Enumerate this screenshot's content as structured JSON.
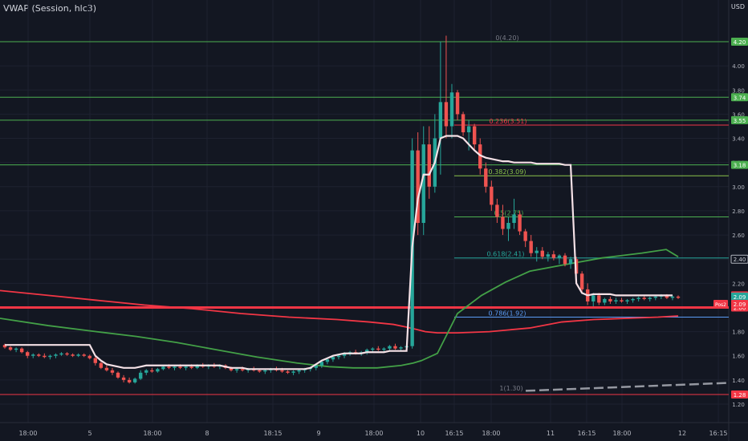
{
  "indicator_label": "VWAP (Session, hlc3)",
  "currency": "USD",
  "chart_data": {
    "type": "candlestick",
    "ylim": [
      1.08,
      4.45
    ],
    "y_ticks": [
      "1.20",
      "1.40",
      "1.60",
      "1.80",
      "2.00",
      "2.20",
      "2.40",
      "2.60",
      "2.80",
      "3.00",
      "3.20",
      "3.40",
      "3.60",
      "3.80",
      "4.00",
      "4.20"
    ],
    "x_ticks": [
      "18:00",
      "5",
      "18:00",
      "8",
      "18:15",
      "9",
      "18:00",
      "10",
      "16:15",
      "18:00",
      "11",
      "16:15",
      "18:00",
      "12",
      "16:15"
    ],
    "horizontal_levels": [
      {
        "price": 4.2,
        "label": "4.20",
        "color": "#4caf50"
      },
      {
        "price": 3.74,
        "label": "3.74",
        "color": "#4caf50"
      },
      {
        "price": 3.55,
        "label": "3.55",
        "color": "#4caf50"
      },
      {
        "price": 3.18,
        "label": "3.18",
        "color": "#4caf50"
      },
      {
        "price": 1.28,
        "label": "1.28",
        "color": "#f23645"
      },
      {
        "price": 2.0,
        "label": "2.00",
        "color": "#f23645"
      }
    ],
    "price_badges": [
      {
        "price": 2.1,
        "label": "2.10",
        "color": "#f23645"
      },
      {
        "price": 2.09,
        "label": "2.09",
        "color": "#26a69a"
      },
      {
        "price": 2.4,
        "label": "2.40",
        "color": "#131722"
      }
    ],
    "position_tag": {
      "price": 2.03,
      "label": "Pos2",
      "value": "2.09"
    },
    "fib_levels": [
      {
        "ratio": "0",
        "price": 4.2,
        "label": "0(4.20)",
        "color": "#787b86"
      },
      {
        "ratio": "0.236",
        "price": 3.51,
        "label": "0.236(3.51)",
        "color": "#f23645"
      },
      {
        "ratio": "0.382",
        "price": 3.09,
        "label": "0.382(3.09)",
        "color": "#8bc34a"
      },
      {
        "ratio": "0.5",
        "price": 2.75,
        "label": "0.5(2.75)",
        "color": "#4caf50"
      },
      {
        "ratio": "0.618",
        "price": 2.41,
        "label": "0.618(2.41)",
        "color": "#26a69a"
      },
      {
        "ratio": "0.786",
        "price": 1.92,
        "label": "0.786(1.92)",
        "color": "#5b9cf6"
      },
      {
        "ratio": "1",
        "price": 1.3,
        "label": "1(1.30)",
        "color": "#787b86"
      }
    ],
    "candles": [
      [
        1.69,
        1.7,
        1.66,
        1.67
      ],
      [
        1.67,
        1.68,
        1.64,
        1.65
      ],
      [
        1.65,
        1.67,
        1.63,
        1.66
      ],
      [
        1.66,
        1.67,
        1.62,
        1.63
      ],
      [
        1.63,
        1.64,
        1.58,
        1.6
      ],
      [
        1.6,
        1.62,
        1.58,
        1.61
      ],
      [
        1.61,
        1.62,
        1.59,
        1.6
      ],
      [
        1.6,
        1.62,
        1.58,
        1.59
      ],
      [
        1.59,
        1.61,
        1.57,
        1.6
      ],
      [
        1.6,
        1.62,
        1.58,
        1.61
      ],
      [
        1.61,
        1.63,
        1.6,
        1.62
      ],
      [
        1.62,
        1.63,
        1.6,
        1.61
      ],
      [
        1.61,
        1.62,
        1.59,
        1.6
      ],
      [
        1.6,
        1.62,
        1.59,
        1.61
      ],
      [
        1.61,
        1.62,
        1.59,
        1.6
      ],
      [
        1.6,
        1.61,
        1.57,
        1.58
      ],
      [
        1.58,
        1.6,
        1.52,
        1.54
      ],
      [
        1.54,
        1.55,
        1.49,
        1.5
      ],
      [
        1.5,
        1.52,
        1.47,
        1.48
      ],
      [
        1.48,
        1.5,
        1.44,
        1.46
      ],
      [
        1.46,
        1.47,
        1.41,
        1.42
      ],
      [
        1.42,
        1.44,
        1.38,
        1.4
      ],
      [
        1.4,
        1.42,
        1.37,
        1.38
      ],
      [
        1.38,
        1.42,
        1.37,
        1.41
      ],
      [
        1.41,
        1.48,
        1.4,
        1.46
      ],
      [
        1.46,
        1.49,
        1.44,
        1.48
      ],
      [
        1.48,
        1.5,
        1.46,
        1.47
      ],
      [
        1.47,
        1.5,
        1.46,
        1.49
      ],
      [
        1.49,
        1.52,
        1.48,
        1.51
      ],
      [
        1.51,
        1.53,
        1.49,
        1.5
      ],
      [
        1.5,
        1.52,
        1.48,
        1.51
      ],
      [
        1.51,
        1.53,
        1.49,
        1.5
      ],
      [
        1.5,
        1.52,
        1.48,
        1.51
      ],
      [
        1.51,
        1.53,
        1.49,
        1.5
      ],
      [
        1.5,
        1.53,
        1.49,
        1.52
      ],
      [
        1.52,
        1.54,
        1.5,
        1.51
      ],
      [
        1.51,
        1.53,
        1.49,
        1.52
      ],
      [
        1.52,
        1.54,
        1.5,
        1.51
      ],
      [
        1.51,
        1.53,
        1.49,
        1.52
      ],
      [
        1.52,
        1.53,
        1.49,
        1.5
      ],
      [
        1.5,
        1.51,
        1.47,
        1.48
      ],
      [
        1.48,
        1.5,
        1.46,
        1.49
      ],
      [
        1.49,
        1.51,
        1.47,
        1.48
      ],
      [
        1.48,
        1.5,
        1.46,
        1.49
      ],
      [
        1.49,
        1.51,
        1.47,
        1.48
      ],
      [
        1.48,
        1.49,
        1.46,
        1.47
      ],
      [
        1.47,
        1.49,
        1.45,
        1.48
      ],
      [
        1.48,
        1.5,
        1.46,
        1.49
      ],
      [
        1.49,
        1.51,
        1.47,
        1.48
      ],
      [
        1.48,
        1.5,
        1.46,
        1.47
      ],
      [
        1.47,
        1.48,
        1.45,
        1.46
      ],
      [
        1.46,
        1.48,
        1.44,
        1.47
      ],
      [
        1.47,
        1.49,
        1.45,
        1.48
      ],
      [
        1.48,
        1.5,
        1.46,
        1.49
      ],
      [
        1.49,
        1.51,
        1.47,
        1.5
      ],
      [
        1.5,
        1.53,
        1.48,
        1.52
      ],
      [
        1.52,
        1.56,
        1.5,
        1.55
      ],
      [
        1.55,
        1.58,
        1.53,
        1.57
      ],
      [
        1.57,
        1.6,
        1.55,
        1.59
      ],
      [
        1.59,
        1.61,
        1.57,
        1.6
      ],
      [
        1.6,
        1.63,
        1.58,
        1.62
      ],
      [
        1.62,
        1.64,
        1.6,
        1.63
      ],
      [
        1.63,
        1.65,
        1.61,
        1.62
      ],
      [
        1.62,
        1.64,
        1.6,
        1.63
      ],
      [
        1.63,
        1.66,
        1.61,
        1.65
      ],
      [
        1.65,
        1.67,
        1.63,
        1.66
      ],
      [
        1.66,
        1.68,
        1.64,
        1.65
      ],
      [
        1.65,
        1.67,
        1.63,
        1.66
      ],
      [
        1.66,
        1.69,
        1.64,
        1.68
      ],
      [
        1.68,
        1.7,
        1.65,
        1.66
      ],
      [
        1.66,
        1.68,
        1.64,
        1.67
      ],
      [
        1.67,
        1.69,
        1.65,
        1.68
      ],
      [
        1.68,
        3.4,
        1.66,
        3.3
      ],
      [
        3.3,
        3.45,
        2.6,
        2.7
      ],
      [
        2.7,
        3.5,
        2.6,
        3.35
      ],
      [
        3.35,
        3.5,
        2.9,
        3.0
      ],
      [
        3.0,
        3.6,
        2.95,
        3.4
      ],
      [
        3.4,
        4.2,
        3.1,
        3.7
      ],
      [
        3.7,
        4.25,
        3.4,
        3.5
      ],
      [
        3.5,
        3.85,
        3.4,
        3.78
      ],
      [
        3.78,
        3.8,
        3.55,
        3.6
      ],
      [
        3.6,
        3.62,
        3.42,
        3.45
      ],
      [
        3.45,
        3.55,
        3.3,
        3.5
      ],
      [
        3.5,
        3.52,
        3.3,
        3.35
      ],
      [
        3.35,
        3.4,
        3.1,
        3.15
      ],
      [
        3.15,
        3.2,
        2.95,
        3.0
      ],
      [
        3.0,
        3.05,
        2.8,
        2.85
      ],
      [
        2.85,
        2.9,
        2.7,
        2.75
      ],
      [
        2.75,
        2.85,
        2.6,
        2.65
      ],
      [
        2.65,
        2.75,
        2.55,
        2.7
      ],
      [
        2.7,
        2.9,
        2.65,
        2.77
      ],
      [
        2.77,
        2.8,
        2.6,
        2.63
      ],
      [
        2.63,
        2.65,
        2.5,
        2.55
      ],
      [
        2.55,
        2.6,
        2.42,
        2.45
      ],
      [
        2.45,
        2.5,
        2.38,
        2.47
      ],
      [
        2.47,
        2.5,
        2.4,
        2.42
      ],
      [
        2.42,
        2.46,
        2.38,
        2.44
      ],
      [
        2.44,
        2.47,
        2.39,
        2.41
      ],
      [
        2.41,
        2.44,
        2.36,
        2.43
      ],
      [
        2.43,
        2.45,
        2.34,
        2.36
      ],
      [
        2.36,
        2.42,
        2.32,
        2.4
      ],
      [
        2.4,
        2.42,
        2.25,
        2.28
      ],
      [
        2.28,
        2.3,
        2.12,
        2.15
      ],
      [
        2.15,
        2.2,
        2.02,
        2.05
      ],
      [
        2.05,
        2.12,
        2.01,
        2.1
      ],
      [
        2.1,
        2.12,
        2.02,
        2.04
      ],
      [
        2.04,
        2.08,
        2.02,
        2.07
      ],
      [
        2.07,
        2.09,
        2.03,
        2.05
      ],
      [
        2.05,
        2.08,
        2.03,
        2.06
      ],
      [
        2.06,
        2.08,
        2.04,
        2.05
      ],
      [
        2.05,
        2.07,
        2.03,
        2.06
      ],
      [
        2.06,
        2.08,
        2.04,
        2.07
      ],
      [
        2.07,
        2.09,
        2.05,
        2.08
      ],
      [
        2.08,
        2.1,
        2.06,
        2.07
      ],
      [
        2.07,
        2.09,
        2.05,
        2.08
      ],
      [
        2.08,
        2.1,
        2.06,
        2.09
      ],
      [
        2.09,
        2.11,
        2.07,
        2.1
      ],
      [
        2.1,
        2.11,
        2.07,
        2.08
      ],
      [
        2.08,
        2.1,
        2.06,
        2.09
      ],
      [
        2.09,
        2.1,
        2.07,
        2.08
      ]
    ],
    "vwap": [
      1.69,
      1.69,
      1.69,
      1.69,
      1.69,
      1.69,
      1.69,
      1.69,
      1.69,
      1.69,
      1.69,
      1.69,
      1.69,
      1.69,
      1.69,
      1.69,
      1.6,
      1.56,
      1.53,
      1.52,
      1.51,
      1.5,
      1.5,
      1.5,
      1.51,
      1.52,
      1.52,
      1.52,
      1.52,
      1.52,
      1.52,
      1.52,
      1.52,
      1.52,
      1.52,
      1.52,
      1.52,
      1.52,
      1.52,
      1.51,
      1.5,
      1.5,
      1.5,
      1.49,
      1.49,
      1.49,
      1.49,
      1.49,
      1.49,
      1.49,
      1.49,
      1.49,
      1.49,
      1.49,
      1.5,
      1.53,
      1.56,
      1.58,
      1.6,
      1.61,
      1.62,
      1.62,
      1.62,
      1.62,
      1.63,
      1.63,
      1.63,
      1.63,
      1.64,
      1.64,
      1.64,
      1.64,
      2.5,
      2.9,
      3.1,
      3.1,
      3.2,
      3.4,
      3.42,
      3.42,
      3.42,
      3.4,
      3.35,
      3.3,
      3.26,
      3.24,
      3.23,
      3.22,
      3.21,
      3.21,
      3.2,
      3.2,
      3.2,
      3.2,
      3.19,
      3.19,
      3.19,
      3.19,
      3.19,
      3.18,
      3.18,
      2.2,
      2.12,
      2.1,
      2.11,
      2.11,
      2.11,
      2.11,
      2.1,
      2.1,
      2.1,
      2.1,
      2.1,
      2.1,
      2.1,
      2.1,
      2.1,
      2.1,
      2.1
    ],
    "ma_red": [
      2.14,
      2.1,
      2.06,
      2.02,
      1.99,
      1.95,
      1.92,
      1.9,
      1.88,
      1.86,
      1.84,
      1.82,
      1.8,
      1.79,
      1.79,
      1.8,
      1.83,
      1.88,
      1.9,
      1.91,
      1.92,
      1.93
    ],
    "ma_green": [
      1.91,
      1.85,
      1.8,
      1.76,
      1.71,
      1.65,
      1.59,
      1.54,
      1.51,
      1.5,
      1.5,
      1.52,
      1.54,
      1.56,
      1.62,
      1.95,
      2.1,
      2.21,
      2.3,
      2.35,
      2.41,
      2.45,
      2.48,
      2.42
    ],
    "dashed_green_ray": [
      1.3,
      1.38
    ]
  }
}
